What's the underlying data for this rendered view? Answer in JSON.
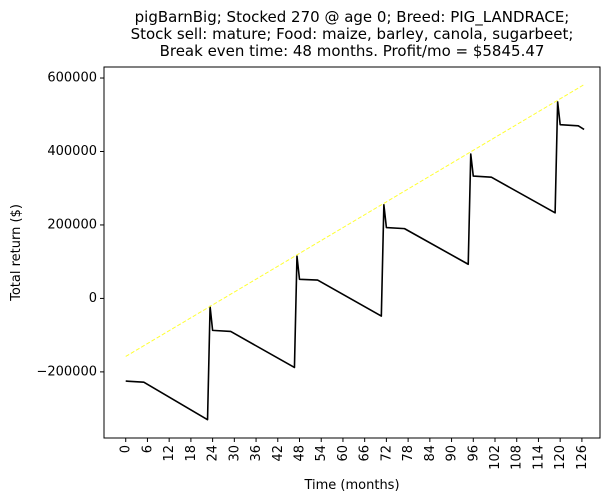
{
  "chart_data": {
    "type": "line",
    "title_lines": [
      "pigBarnBig; Stocked 270 @ age 0; Breed: PIG_LANDRACE;",
      "Stock sell: mature; Food: maize, barley, canola, sugarbeet;",
      "Break even time: 48 months. Profit/mo = $5845.47"
    ],
    "xlabel": "Time (months)",
    "ylabel": "Total return ($)",
    "xlim": [
      -6,
      131
    ],
    "ylim": [
      -380000,
      630000
    ],
    "xticks": [
      0,
      6,
      12,
      18,
      24,
      30,
      36,
      42,
      48,
      54,
      60,
      66,
      72,
      78,
      84,
      90,
      96,
      102,
      108,
      114,
      120,
      126
    ],
    "yticks": [
      -200000,
      0,
      200000,
      400000,
      600000
    ],
    "ytick_labels": [
      "−200000",
      "0",
      "200000",
      "400000",
      "600000"
    ],
    "grid": false,
    "series": [
      {
        "color": "#000000",
        "style": "solid",
        "x": [
          0,
          5,
          22.6,
          23.3,
          24,
          29,
          46.6,
          47.3,
          48,
          53,
          70.6,
          71.3,
          72,
          77,
          94.6,
          95.3,
          96,
          101,
          118.6,
          119.3,
          120,
          125,
          126.6
        ],
        "y": [
          -225000,
          -228000,
          -330000,
          -22000,
          -87000,
          -90000,
          -188000,
          115000,
          52000,
          50000,
          -48000,
          255000,
          193000,
          190000,
          93000,
          393000,
          333000,
          330000,
          233000,
          535000,
          473000,
          470000,
          460000
        ]
      },
      {
        "color": "#ffff33",
        "style": "dashed",
        "x": [
          0,
          126.6
        ],
        "y": [
          -158000,
          582000
        ]
      }
    ]
  }
}
